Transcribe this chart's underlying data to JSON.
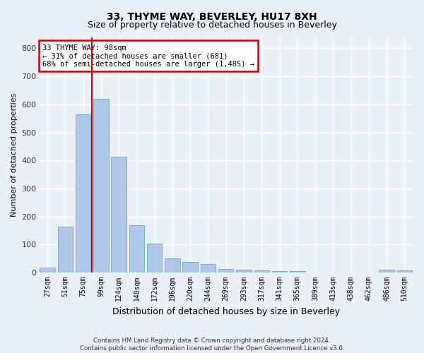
{
  "title_line1": "33, THYME WAY, BEVERLEY, HU17 8XH",
  "title_line2": "Size of property relative to detached houses in Beverley",
  "xlabel": "Distribution of detached houses by size in Beverley",
  "ylabel": "Number of detached properties",
  "footnote": "Contains HM Land Registry data © Crown copyright and database right 2024.\nContains public sector information licensed under the Open Government Licence v3.0.",
  "bar_labels": [
    "27sqm",
    "51sqm",
    "75sqm",
    "99sqm",
    "124sqm",
    "148sqm",
    "172sqm",
    "196sqm",
    "220sqm",
    "244sqm",
    "269sqm",
    "293sqm",
    "317sqm",
    "341sqm",
    "365sqm",
    "389sqm",
    "413sqm",
    "438sqm",
    "462sqm",
    "486sqm",
    "510sqm"
  ],
  "bar_values": [
    18,
    163,
    563,
    620,
    413,
    170,
    103,
    50,
    38,
    30,
    13,
    10,
    8,
    5,
    5,
    0,
    0,
    0,
    0,
    10,
    8
  ],
  "bar_color": "#aec6e8",
  "bar_edge_color": "#7aadd4",
  "background_color": "#eaf0f8",
  "grid_color": "#ffffff",
  "vline_bin_index": 3,
  "property_label": "33 THYME WAY: 98sqm",
  "annotation_line1": "← 31% of detached houses are smaller (681)",
  "annotation_line2": "68% of semi-detached houses are larger (1,485) →",
  "vline_color": "#cc0000",
  "annotation_box_color": "#ffffff",
  "annotation_box_edge": "#cc0000",
  "ylim": [
    0,
    840
  ],
  "yticks": [
    0,
    100,
    200,
    300,
    400,
    500,
    600,
    700,
    800
  ]
}
